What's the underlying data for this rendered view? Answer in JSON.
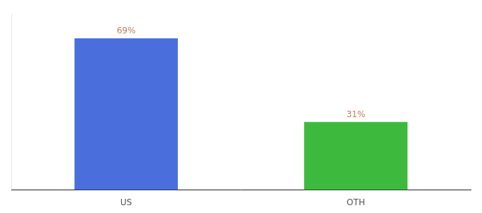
{
  "chart_data": {
    "type": "bar",
    "categories": [
      "US",
      "OTH"
    ],
    "values": [
      69,
      31
    ],
    "value_labels": [
      "69%",
      "31%"
    ],
    "data_labels": true,
    "colors": [
      "#4a6fdc",
      "#3dba3d"
    ],
    "ylim": [
      0,
      80
    ],
    "grid": false,
    "tick_labels": "x"
  }
}
